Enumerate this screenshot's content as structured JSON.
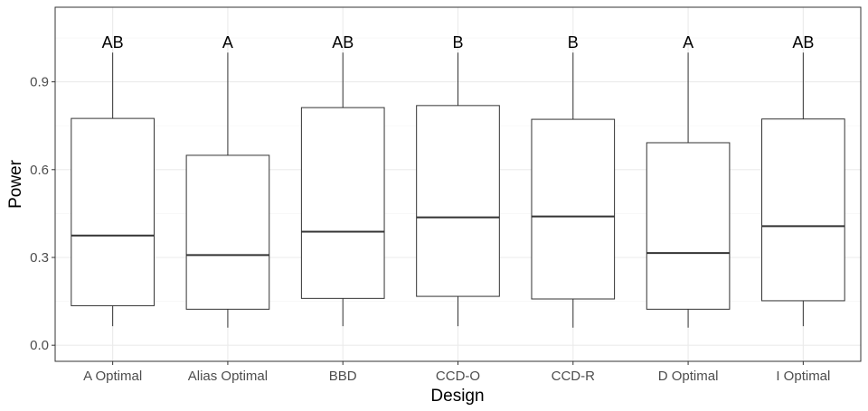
{
  "chart_data": {
    "type": "boxplot",
    "xlabel": "Design",
    "ylabel": "Power",
    "ylim": [
      -0.055,
      1.155
    ],
    "yticks": [
      0.0,
      0.3,
      0.6,
      0.9
    ],
    "ytick_labels": [
      "0.0",
      "0.3",
      "0.6",
      "0.9"
    ],
    "grid": true,
    "categories": [
      "A Optimal",
      "Alias Optimal",
      "BBD",
      "CCD-O",
      "CCD-R",
      "D Optimal",
      "I Optimal"
    ],
    "boxes": [
      {
        "category": "A Optimal",
        "min": 0.065,
        "q1": 0.135,
        "median": 0.375,
        "q3": 0.775,
        "max": 1.0,
        "letter": "AB"
      },
      {
        "category": "Alias Optimal",
        "min": 0.06,
        "q1": 0.123,
        "median": 0.308,
        "q3": 0.649,
        "max": 1.0,
        "letter": "A"
      },
      {
        "category": "BBD",
        "min": 0.065,
        "q1": 0.16,
        "median": 0.388,
        "q3": 0.812,
        "max": 1.0,
        "letter": "AB"
      },
      {
        "category": "CCD-O",
        "min": 0.065,
        "q1": 0.167,
        "median": 0.437,
        "q3": 0.819,
        "max": 1.0,
        "letter": "B"
      },
      {
        "category": "CCD-R",
        "min": 0.06,
        "q1": 0.158,
        "median": 0.44,
        "q3": 0.772,
        "max": 1.0,
        "letter": "B"
      },
      {
        "category": "D Optimal",
        "min": 0.06,
        "q1": 0.123,
        "median": 0.315,
        "q3": 0.692,
        "max": 1.0,
        "letter": "A"
      },
      {
        "category": "I Optimal",
        "min": 0.065,
        "q1": 0.152,
        "median": 0.407,
        "q3": 0.773,
        "max": 1.0,
        "letter": "AB"
      }
    ]
  }
}
